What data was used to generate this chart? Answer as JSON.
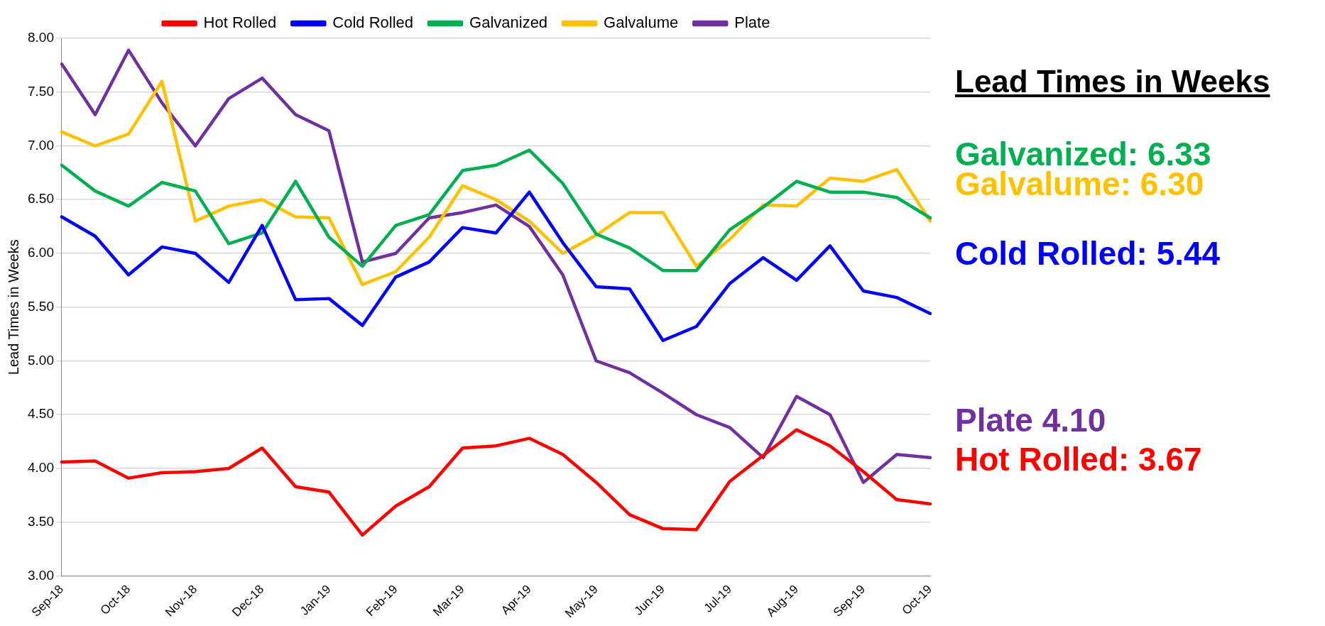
{
  "chart_data": {
    "type": "line",
    "ylabel": "Lead Times in Weeks",
    "categories": [
      "Sep-18",
      null,
      "Oct-18",
      null,
      "Nov-18",
      null,
      "Dec-18",
      null,
      "Jan-19",
      null,
      "Feb-19",
      null,
      "Mar-19",
      null,
      "Apr-19",
      null,
      "May-19",
      null,
      "Jun-19",
      null,
      "Jul-19",
      null,
      "Aug-19",
      null,
      "Sep-19",
      null,
      "Oct-19"
    ],
    "series": [
      {
        "name": "Hot Rolled",
        "color": "#ff0000",
        "values": [
          4.06,
          4.07,
          3.91,
          3.96,
          3.97,
          4.0,
          4.19,
          3.83,
          3.78,
          3.38,
          3.65,
          3.83,
          4.19,
          4.21,
          4.28,
          4.13,
          3.87,
          3.57,
          3.44,
          3.43,
          3.88,
          4.12,
          4.36,
          4.21,
          3.97,
          3.71,
          3.67
        ]
      },
      {
        "name": "Cold Rolled",
        "color": "#0000ff",
        "values": [
          6.34,
          6.16,
          5.8,
          6.06,
          6.0,
          5.73,
          6.26,
          5.57,
          5.58,
          5.33,
          5.78,
          5.92,
          6.24,
          6.19,
          6.57,
          6.1,
          5.69,
          5.67,
          5.19,
          5.32,
          5.72,
          5.96,
          5.75,
          6.07,
          5.65,
          5.59,
          5.44
        ]
      },
      {
        "name": "Galvanized",
        "color": "#00b050",
        "values": [
          6.82,
          6.58,
          6.44,
          6.66,
          6.58,
          6.09,
          6.19,
          6.67,
          6.15,
          5.88,
          6.26,
          6.36,
          6.77,
          6.82,
          6.96,
          6.65,
          6.18,
          6.05,
          5.84,
          5.84,
          6.22,
          6.43,
          6.67,
          6.57,
          6.57,
          6.52,
          6.33
        ]
      },
      {
        "name": "Galvalume",
        "color": "#ffc000",
        "values": [
          7.13,
          7.0,
          7.11,
          7.6,
          6.3,
          6.44,
          6.5,
          6.34,
          6.33,
          5.71,
          5.83,
          6.15,
          6.63,
          6.5,
          6.3,
          6.0,
          6.17,
          6.38,
          6.38,
          5.88,
          6.13,
          6.45,
          6.44,
          6.7,
          6.67,
          6.78,
          6.3
        ]
      },
      {
        "name": "Plate",
        "color": "#7030a0",
        "values": [
          7.76,
          7.29,
          7.89,
          7.4,
          7.0,
          7.44,
          7.63,
          7.29,
          7.14,
          5.92,
          6.0,
          6.33,
          6.38,
          6.45,
          6.25,
          5.8,
          5.0,
          4.89,
          4.7,
          4.5,
          4.38,
          4.1,
          4.67,
          4.5,
          3.87,
          4.13,
          4.1
        ]
      }
    ],
    "ylim": [
      3,
      8
    ],
    "yticks": [
      {
        "value": 3,
        "label": "3.00"
      },
      {
        "value": 3.5,
        "label": "3.50"
      },
      {
        "value": 4,
        "label": "4.00"
      },
      {
        "value": 4.5,
        "label": "4.50"
      },
      {
        "value": 5,
        "label": "5.00"
      },
      {
        "value": 5.5,
        "label": "5.50"
      },
      {
        "value": 6,
        "label": "6.00"
      },
      {
        "value": 6.5,
        "label": "6.50"
      },
      {
        "value": 7,
        "label": "7.00"
      },
      {
        "value": 7.5,
        "label": "7.50"
      },
      {
        "value": 8,
        "label": "8.00"
      }
    ],
    "grid": "y",
    "legend": "top",
    "marker": "none",
    "line_style": "solid",
    "annotations": [
      "Lead Times in Weeks",
      "Galvanized: 6.33",
      "Galvalume: 6.30",
      "Cold Rolled: 5.44",
      "Plate 4.10",
      "Hot Rolled: 3.67"
    ]
  }
}
